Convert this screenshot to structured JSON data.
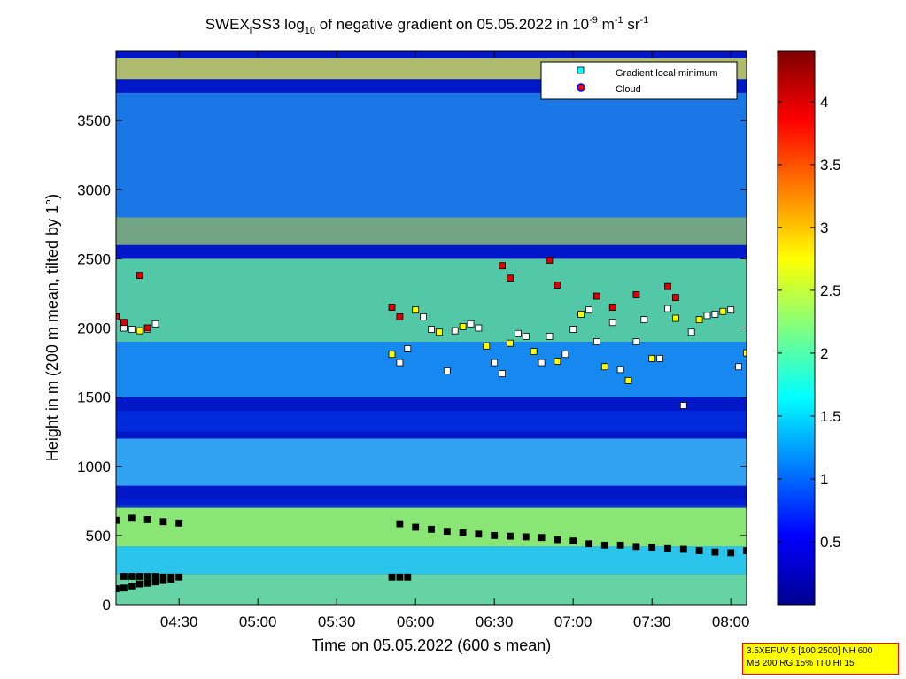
{
  "chart_data": {
    "type": "heatmap",
    "title_parts": {
      "prefix": "SWEX",
      "prefix_sub": "l",
      "main": "SS3 log",
      "log_sub": "10",
      "rest": " of negative gradient on 05.05.2022 in 10",
      "exp1": "-9",
      "unit_m": " m",
      "exp2": "-1",
      "unit_sr": " sr",
      "exp3": "-1"
    },
    "xlabel": "Time on 05.05.2022 (600 s mean)",
    "ylabel": "Height in m (200 m mean, tilted by 1°)",
    "x_ticks": [
      "04:30",
      "05:00",
      "05:30",
      "06:00",
      "06:30",
      "07:00",
      "07:30",
      "08:00"
    ],
    "x_tick_hours": [
      4.5,
      5.0,
      5.5,
      6.0,
      6.5,
      7.0,
      7.5,
      8.0
    ],
    "xlim_hours": [
      4.1,
      8.1
    ],
    "y_ticks": [
      "0",
      "500",
      "1000",
      "1500",
      "2000",
      "2500",
      "3000",
      "3500"
    ],
    "y_tick_values": [
      0,
      500,
      1000,
      1500,
      2000,
      2500,
      3000,
      3500
    ],
    "ylim": [
      0,
      4000
    ],
    "colorbar": {
      "ticks": [
        "0.5",
        "1",
        "1.5",
        "2",
        "2.5",
        "3",
        "3.5",
        "4"
      ],
      "tick_values": [
        0.5,
        1,
        1.5,
        2,
        2.5,
        3,
        3.5,
        4
      ],
      "range": [
        0,
        4.4
      ],
      "colormap": "jet"
    },
    "legend": {
      "placement": "top-right",
      "entries": [
        {
          "name": "Gradient local minimum",
          "marker": "square",
          "color": "#00ffff"
        },
        {
          "name": "Cloud",
          "marker": "circle",
          "color": "#ff0000"
        }
      ]
    },
    "series": [
      {
        "name": "Gradient local minimum",
        "layer": "lowest",
        "x_hours": [
          4.1,
          4.15,
          4.2,
          4.25,
          4.3,
          4.35,
          4.4,
          4.45,
          4.5
        ],
        "y": [
          115,
          120,
          135,
          150,
          155,
          165,
          175,
          185,
          200
        ]
      },
      {
        "name": "Gradient local minimum",
        "layer": "lower",
        "x_hours": [
          4.15,
          4.2,
          4.25,
          4.3,
          4.35,
          4.4,
          4.45,
          5.85,
          5.9,
          5.95
        ],
        "y": [
          205,
          205,
          205,
          205,
          205,
          200,
          200,
          200,
          200,
          200
        ]
      },
      {
        "name": "Gradient local minimum",
        "layer": "surface-layer top",
        "x_hours": [
          4.1,
          4.2,
          4.3,
          4.4,
          4.5,
          5.9,
          6.0,
          6.1,
          6.2,
          6.3,
          6.4,
          6.5,
          6.6,
          6.7,
          6.8,
          6.9,
          7.0,
          7.1,
          7.2,
          7.3,
          7.4,
          7.5,
          7.6,
          7.7,
          7.8,
          7.9,
          8.0,
          8.1
        ],
        "y": [
          610,
          625,
          615,
          600,
          590,
          585,
          560,
          545,
          530,
          520,
          510,
          500,
          495,
          490,
          485,
          470,
          460,
          440,
          430,
          430,
          420,
          415,
          405,
          400,
          390,
          380,
          375,
          390
        ]
      },
      {
        "name": "Gradient local minimum",
        "layer": "boundary-layer top",
        "x_hours": [
          4.1,
          4.15,
          4.2,
          4.25,
          4.3,
          4.35,
          5.85,
          5.9,
          5.95,
          6.0,
          6.05,
          6.1,
          6.15,
          6.2,
          6.25,
          6.3,
          6.35,
          6.4,
          6.45,
          6.5,
          6.55,
          6.6,
          6.65,
          6.7,
          6.75,
          6.8,
          6.85,
          6.9,
          6.95,
          7.0,
          7.05,
          7.1,
          7.15,
          7.2,
          7.25,
          7.3,
          7.35,
          7.4,
          7.45,
          7.5,
          7.55,
          7.6,
          7.65,
          7.7,
          7.75,
          7.8,
          7.85,
          7.9,
          7.95,
          8.0,
          8.05,
          8.1
        ],
        "y": [
          2080,
          2000,
          1990,
          1980,
          1990,
          2030,
          1810,
          1750,
          1850,
          2130,
          2080,
          1990,
          1970,
          1690,
          1980,
          2010,
          2030,
          2000,
          1870,
          1750,
          1670,
          1890,
          1960,
          1940,
          1830,
          1750,
          1940,
          1760,
          1810,
          1990,
          2100,
          2130,
          1900,
          1720,
          2040,
          1700,
          1620,
          1900,
          2060,
          1780,
          1780,
          2140,
          2070,
          1440,
          1970,
          2060,
          2090,
          2100,
          2120,
          2130,
          1720,
          1820
        ]
      },
      {
        "name": "Cloud",
        "x_hours": [
          4.1,
          4.15,
          4.25,
          4.3,
          5.85,
          5.9,
          6.55,
          6.6,
          6.85,
          6.9,
          7.15,
          7.25,
          7.4,
          7.6,
          7.65
        ],
        "y": [
          2080,
          2040,
          2380,
          2000,
          2150,
          2080,
          2450,
          2360,
          2490,
          2310,
          2230,
          2150,
          2240,
          2300,
          2220
        ]
      }
    ],
    "info_box_lines": [
      "3.5XEFUV 5 [100 2500] NH 600",
      "MB 200 RG 15% TI 0 HI 15"
    ]
  }
}
